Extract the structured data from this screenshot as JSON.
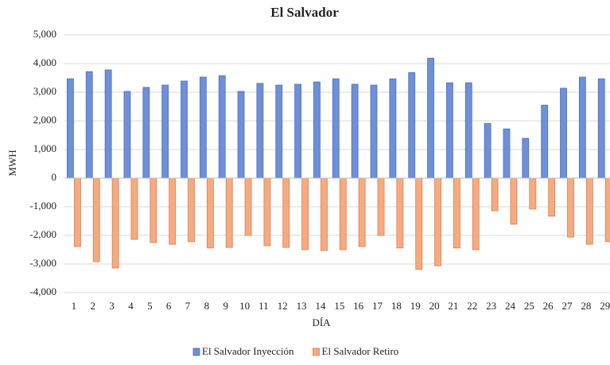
{
  "chart_data": {
    "type": "bar",
    "title": "El Salvador",
    "x_label": "DÍA",
    "y_label": "MWH",
    "categories": [
      "1",
      "2",
      "3",
      "4",
      "5",
      "6",
      "7",
      "8",
      "9",
      "10",
      "11",
      "12",
      "13",
      "14",
      "15",
      "16",
      "17",
      "18",
      "19",
      "20",
      "21",
      "22",
      "23",
      "24",
      "25",
      "26",
      "27",
      "28",
      "29"
    ],
    "series": [
      {
        "name": "El Salvador Inyección",
        "color": "#6f8fd8",
        "values": [
          3470,
          3720,
          3780,
          3030,
          3170,
          3250,
          3390,
          3530,
          3580,
          3030,
          3310,
          3250,
          3280,
          3360,
          3470,
          3280,
          3250,
          3470,
          3690,
          4190,
          3330,
          3330,
          1910,
          1720,
          1390,
          2550,
          3140,
          3530,
          3470
        ]
      },
      {
        "name": "El Salvador Retiro",
        "color": "#f5ab82",
        "values": [
          -2390,
          -2920,
          -3140,
          -2140,
          -2250,
          -2310,
          -2220,
          -2440,
          -2420,
          -2000,
          -2360,
          -2420,
          -2500,
          -2530,
          -2500,
          -2390,
          -2000,
          -2440,
          -3190,
          -3060,
          -2440,
          -2500,
          -1140,
          -1610,
          -1080,
          -1330,
          -2060,
          -2310,
          -2220
        ]
      }
    ],
    "ylim": [
      -4000,
      5000
    ],
    "yticks": [
      {
        "value": -4000,
        "label": "-4,000"
      },
      {
        "value": -3000,
        "label": "-3,000"
      },
      {
        "value": -2000,
        "label": "-2,000"
      },
      {
        "value": -1000,
        "label": "-1,000"
      },
      0,
      {
        "value": 1000,
        "label": "1,000"
      },
      {
        "value": 2000,
        "label": "2,000"
      },
      {
        "value": 3000,
        "label": "3,000"
      },
      {
        "value": 4000,
        "label": "4,000"
      },
      {
        "value": 5000,
        "label": "5,000"
      }
    ],
    "grid": true,
    "legend": "bottom"
  }
}
